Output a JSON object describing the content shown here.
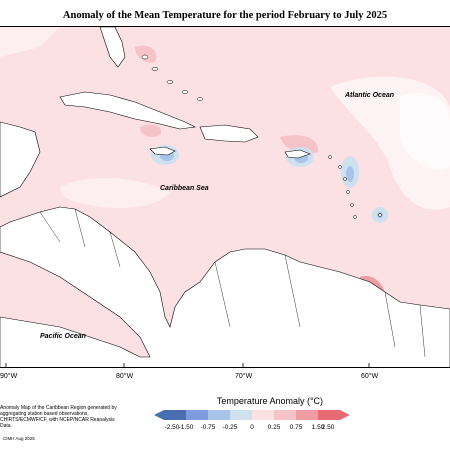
{
  "title": "Anomaly of the Mean Temperature for the period February to July 2025",
  "map": {
    "ocean_labels": {
      "atlantic": "Atlantic Ocean",
      "caribbean": "Caribbean Sea",
      "pacific": "Pacific Ocean"
    },
    "longitude_labels": [
      "90°W",
      "80°W",
      "70°W",
      "60°W"
    ]
  },
  "legend": {
    "title": "Temperature Anomaly (°C)",
    "classes": [
      {
        "label": "-2.50",
        "color": "#4a6fb0"
      },
      {
        "label": "-1.50",
        "color": "#7f9be0"
      },
      {
        "label": "-0.75",
        "color": "#a8c4ea"
      },
      {
        "label": "-0.25",
        "color": "#cfe0ee"
      },
      {
        "label": "0",
        "color": "#ffffff"
      },
      {
        "label": "0.25",
        "color": "#fbe1e4"
      },
      {
        "label": "0.75",
        "color": "#f6c3c9"
      },
      {
        "label": "1.50",
        "color": "#ee9da5"
      },
      {
        "label": "2.50",
        "color": "#e86a74"
      }
    ]
  },
  "footnote": "Anomaly Map of the Caribbean Region generated by aggregating station based observations, CHIRTS/ECMWF/CF, with NCEP/NCAR Reanalysis Data.",
  "credit": "CIMH Aug 2025"
}
